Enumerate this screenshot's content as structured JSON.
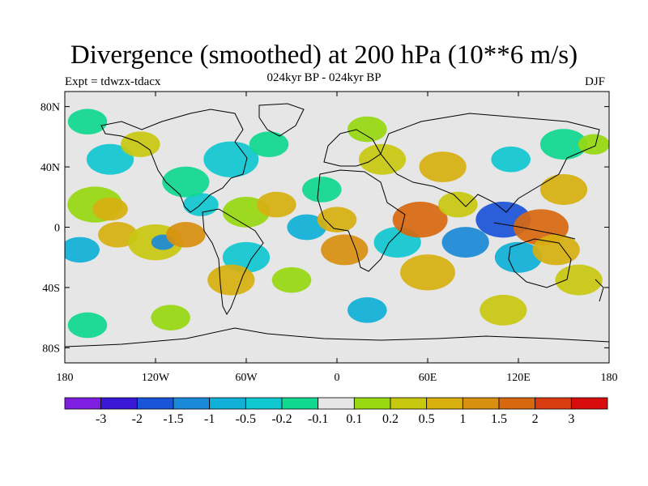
{
  "title": "Divergence (smoothed) at 200 hPa (10**6 m/s)",
  "subtitle_left": "Expt = tdwzx-tdacx",
  "subtitle_center": "024kyr BP - 024kyr BP",
  "subtitle_right": "DJF",
  "map": {
    "background_color": "#e6e6e6",
    "lat_ticks": [
      {
        "value": 80,
        "label": "80N"
      },
      {
        "value": 40,
        "label": "40N"
      },
      {
        "value": 0,
        "label": "0"
      },
      {
        "value": -40,
        "label": "40S"
      },
      {
        "value": -80,
        "label": "80S"
      }
    ],
    "lon_ticks": [
      {
        "value": -180,
        "label": "180"
      },
      {
        "value": -120,
        "label": "120W"
      },
      {
        "value": -60,
        "label": "60W"
      },
      {
        "value": 0,
        "label": "0"
      },
      {
        "value": 60,
        "label": "60E"
      },
      {
        "value": 120,
        "label": "120E"
      },
      {
        "value": 180,
        "label": "180"
      }
    ],
    "lat_range": [
      -90,
      90
    ],
    "lon_range": [
      -180,
      180
    ]
  },
  "colorbar": {
    "colors": [
      "#7e1ee0",
      "#3a18d8",
      "#1a54d8",
      "#1a8ad8",
      "#10b0d8",
      "#10c8d0",
      "#10d890",
      "#e6e6e6",
      "#98d810",
      "#c8c810",
      "#d8b010",
      "#d89010",
      "#d86810",
      "#d83c10",
      "#d80c0c"
    ],
    "labels": [
      "-3",
      "-2",
      "-1.5",
      "-1",
      "-0.5",
      "-0.2",
      "-0.1",
      "0.1",
      "0.2",
      "0.5",
      "1",
      "1.5",
      "2",
      "3"
    ]
  },
  "field_blobs": [
    {
      "lon": -160,
      "lat": 15,
      "r": 14,
      "c": 8
    },
    {
      "lon": -150,
      "lat": 12,
      "r": 9,
      "c": 10
    },
    {
      "lon": -170,
      "lat": -15,
      "r": 10,
      "c": 4
    },
    {
      "lon": -145,
      "lat": -5,
      "r": 10,
      "c": 10
    },
    {
      "lon": -120,
      "lat": -10,
      "r": 14,
      "c": 9
    },
    {
      "lon": -115,
      "lat": -10,
      "r": 6,
      "c": 3
    },
    {
      "lon": -100,
      "lat": -5,
      "r": 10,
      "c": 11
    },
    {
      "lon": -90,
      "lat": 15,
      "r": 9,
      "c": 5
    },
    {
      "lon": -100,
      "lat": 30,
      "r": 12,
      "c": 6
    },
    {
      "lon": -150,
      "lat": 45,
      "r": 12,
      "c": 5
    },
    {
      "lon": -130,
      "lat": 55,
      "r": 10,
      "c": 9
    },
    {
      "lon": -165,
      "lat": 70,
      "r": 10,
      "c": 6
    },
    {
      "lon": -70,
      "lat": 45,
      "r": 14,
      "c": 5
    },
    {
      "lon": -45,
      "lat": 55,
      "r": 10,
      "c": 6
    },
    {
      "lon": -60,
      "lat": 10,
      "r": 12,
      "c": 8
    },
    {
      "lon": -40,
      "lat": 15,
      "r": 10,
      "c": 10
    },
    {
      "lon": -60,
      "lat": -20,
      "r": 12,
      "c": 5
    },
    {
      "lon": -70,
      "lat": -35,
      "r": 12,
      "c": 10
    },
    {
      "lon": -30,
      "lat": -35,
      "r": 10,
      "c": 8
    },
    {
      "lon": -20,
      "lat": 0,
      "r": 10,
      "c": 4
    },
    {
      "lon": -10,
      "lat": 25,
      "r": 10,
      "c": 6
    },
    {
      "lon": 0,
      "lat": 5,
      "r": 10,
      "c": 10
    },
    {
      "lon": 5,
      "lat": -15,
      "r": 12,
      "c": 11
    },
    {
      "lon": 20,
      "lat": 65,
      "r": 10,
      "c": 8
    },
    {
      "lon": 30,
      "lat": 45,
      "r": 12,
      "c": 9
    },
    {
      "lon": 40,
      "lat": -10,
      "r": 12,
      "c": 5
    },
    {
      "lon": 55,
      "lat": 5,
      "r": 14,
      "c": 12
    },
    {
      "lon": 60,
      "lat": -30,
      "r": 14,
      "c": 10
    },
    {
      "lon": 70,
      "lat": 40,
      "r": 12,
      "c": 10
    },
    {
      "lon": 80,
      "lat": 15,
      "r": 10,
      "c": 9
    },
    {
      "lon": 85,
      "lat": -10,
      "r": 12,
      "c": 3
    },
    {
      "lon": 110,
      "lat": 5,
      "r": 14,
      "c": 2
    },
    {
      "lon": 120,
      "lat": -20,
      "r": 12,
      "c": 4
    },
    {
      "lon": 135,
      "lat": 0,
      "r": 14,
      "c": 12
    },
    {
      "lon": 145,
      "lat": -15,
      "r": 12,
      "c": 10
    },
    {
      "lon": 160,
      "lat": -35,
      "r": 12,
      "c": 9
    },
    {
      "lon": 150,
      "lat": 25,
      "r": 12,
      "c": 10
    },
    {
      "lon": 115,
      "lat": 45,
      "r": 10,
      "c": 5
    },
    {
      "lon": 150,
      "lat": 55,
      "r": 12,
      "c": 6
    },
    {
      "lon": -110,
      "lat": -60,
      "r": 10,
      "c": 8
    },
    {
      "lon": 20,
      "lat": -55,
      "r": 10,
      "c": 4
    },
    {
      "lon": 110,
      "lat": -55,
      "r": 12,
      "c": 9
    },
    {
      "lon": -165,
      "lat": -65,
      "r": 10,
      "c": 6
    },
    {
      "lon": 170,
      "lat": 55,
      "r": 8,
      "c": 8
    }
  ]
}
